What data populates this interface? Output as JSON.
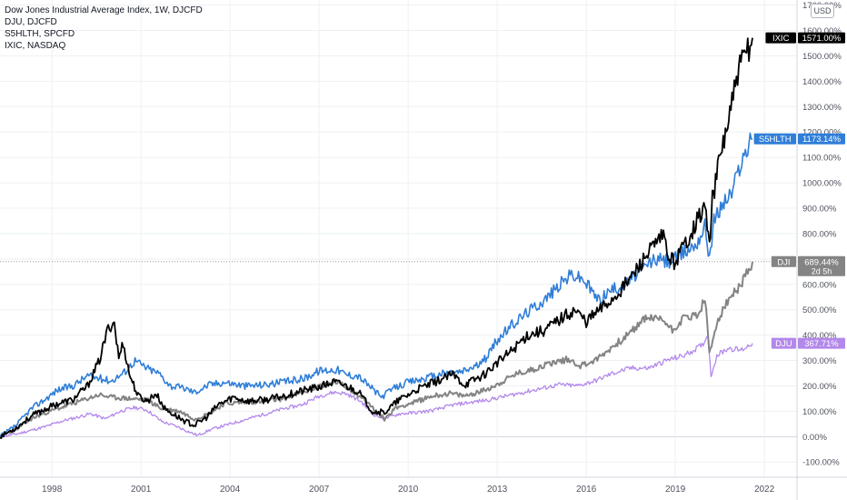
{
  "legend": [
    "Dow Jones Industrial Average Index, 1W, DJCFD",
    "DJU, DJCFD",
    "S5HLTH, SPCFD",
    "IXIC, NASDAQ"
  ],
  "currency": "USD",
  "colors": {
    "background": "#ffffff",
    "grid": "#eef0f3",
    "axis_text": "#50535e",
    "zero_line": "#d1d4dc",
    "DJI": "#848484",
    "DJU": "#b388eb",
    "S5HLTH": "#2f7ed8",
    "IXIC": "#000000"
  },
  "chart_data": {
    "type": "line",
    "title": "Dow Jones Industrial Average Index, 1W, DJCFD",
    "xlabel": "",
    "ylabel": "",
    "x_ticks": [
      "1998",
      "2001",
      "2004",
      "2007",
      "2010",
      "2013",
      "2016",
      "2019",
      "2022"
    ],
    "y_ticks": [
      "-100.00%",
      "0.00%",
      "100.00%",
      "200.00%",
      "300.00%",
      "400.00%",
      "500.00%",
      "600.00%",
      "700.00%",
      "800.00%",
      "900.00%",
      "1000.00%",
      "1100.00%",
      "1200.00%",
      "1300.00%",
      "1400.00%",
      "1500.00%",
      "1600.00%",
      "1700.00%"
    ],
    "xlim": [
      1996.25,
      2023.1
    ],
    "ylim": [
      -160,
      1720
    ],
    "grid": true,
    "legend_position": "top-left",
    "series": [
      {
        "name": "IXIC",
        "label": "IXIC",
        "value_label": "1571.00%",
        "value": 1571,
        "x": [
          1996.25,
          1996.8,
          1997.3,
          1997.8,
          1998.2,
          1998.7,
          1999.2,
          1999.6,
          1999.9,
          2000.1,
          2000.25,
          2000.4,
          2000.6,
          2000.9,
          2001.2,
          2001.5,
          2001.8,
          2002.2,
          2002.5,
          2002.8,
          2003.2,
          2003.6,
          2004.1,
          2004.6,
          2005.2,
          2005.8,
          2006.4,
          2007.0,
          2007.5,
          2007.8,
          2008.3,
          2008.8,
          2009.2,
          2009.7,
          2010.3,
          2010.9,
          2011.5,
          2011.9,
          2012.5,
          2013.0,
          2013.5,
          2014.0,
          2014.6,
          2015.2,
          2015.6,
          2016.0,
          2016.4,
          2016.9,
          2017.5,
          2018.0,
          2018.6,
          2018.8,
          2019.0,
          2019.5,
          2020.0,
          2020.15,
          2020.25,
          2020.5,
          2020.8,
          2021.1,
          2021.4,
          2021.6
        ],
        "values": [
          0,
          35,
          80,
          110,
          130,
          145,
          200,
          300,
          430,
          450,
          310,
          370,
          250,
          160,
          140,
          170,
          110,
          80,
          60,
          45,
          75,
          125,
          155,
          140,
          145,
          160,
          180,
          195,
          215,
          205,
          180,
          100,
          95,
          145,
          185,
          215,
          245,
          205,
          240,
          290,
          340,
          400,
          420,
          470,
          500,
          455,
          495,
          545,
          625,
          710,
          790,
          700,
          690,
          800,
          910,
          750,
          930,
          1100,
          1250,
          1420,
          1520,
          1571
        ]
      },
      {
        "name": "S5HLTH",
        "label": "S5HLTH",
        "value_label": "1173.14%",
        "value": 1173.14,
        "x": [
          1996.25,
          1996.8,
          1997.3,
          1997.8,
          1998.2,
          1998.7,
          1999.2,
          1999.6,
          2000.0,
          2000.4,
          2000.8,
          2001.2,
          2001.6,
          2002.0,
          2002.5,
          2002.8,
          2003.3,
          2003.8,
          2004.5,
          2005.2,
          2005.8,
          2006.5,
          2007.0,
          2007.6,
          2007.9,
          2008.3,
          2008.7,
          2009.1,
          2009.5,
          2010.0,
          2010.6,
          2011.2,
          2011.8,
          2012.5,
          2013.0,
          2013.5,
          2014.0,
          2014.6,
          2015.2,
          2015.5,
          2015.9,
          2016.4,
          2016.8,
          2017.3,
          2017.8,
          2018.3,
          2018.8,
          2019.2,
          2019.7,
          2020.0,
          2020.15,
          2020.3,
          2020.6,
          2020.9,
          2021.2,
          2021.6
        ],
        "values": [
          0,
          45,
          110,
          150,
          185,
          200,
          240,
          230,
          220,
          250,
          300,
          270,
          250,
          200,
          190,
          175,
          205,
          215,
          200,
          205,
          215,
          230,
          260,
          265,
          245,
          240,
          200,
          155,
          190,
          215,
          230,
          250,
          255,
          290,
          380,
          440,
          490,
          540,
          610,
          640,
          620,
          540,
          575,
          600,
          650,
          700,
          690,
          720,
          760,
          830,
          710,
          850,
          920,
          960,
          1080,
          1173
        ]
      },
      {
        "name": "DJI",
        "label": "DJI",
        "value_label": "689.44%",
        "value": 689.44,
        "sub_label": "2d 5h",
        "x": [
          1996.25,
          1996.8,
          1997.3,
          1997.8,
          1998.2,
          1998.7,
          1999.2,
          1999.6,
          2000.0,
          2000.6,
          2001.2,
          2001.7,
          2002.3,
          2002.8,
          2003.3,
          2003.8,
          2004.5,
          2005.2,
          2005.8,
          2006.5,
          2007.0,
          2007.6,
          2008.0,
          2008.5,
          2009.0,
          2009.2,
          2009.6,
          2010.2,
          2010.8,
          2011.4,
          2011.9,
          2012.5,
          2013.0,
          2013.6,
          2014.2,
          2014.8,
          2015.4,
          2015.8,
          2016.3,
          2016.9,
          2017.5,
          2018.0,
          2018.6,
          2018.9,
          2019.3,
          2019.8,
          2020.0,
          2020.15,
          2020.4,
          2020.8,
          2021.1,
          2021.4,
          2021.6
        ],
        "values": [
          0,
          30,
          70,
          95,
          110,
          130,
          150,
          165,
          155,
          150,
          145,
          110,
          100,
          70,
          90,
          130,
          135,
          140,
          150,
          175,
          200,
          215,
          190,
          150,
          90,
          70,
          115,
          135,
          160,
          170,
          160,
          180,
          205,
          245,
          265,
          290,
          305,
          280,
          300,
          355,
          410,
          470,
          460,
          420,
          470,
          480,
          550,
          320,
          450,
          540,
          580,
          640,
          689
        ]
      },
      {
        "name": "DJU",
        "label": "DJU",
        "value_label": "367.71%",
        "value": 367.71,
        "x": [
          1996.25,
          1996.8,
          1997.3,
          1997.8,
          1998.3,
          1998.8,
          1999.3,
          1999.8,
          2000.3,
          2000.8,
          2001.2,
          2001.7,
          2002.2,
          2002.6,
          2002.9,
          2003.4,
          2004.0,
          2004.6,
          2005.2,
          2005.8,
          2006.4,
          2007.0,
          2007.5,
          2007.9,
          2008.4,
          2008.8,
          2009.2,
          2009.7,
          2010.3,
          2010.9,
          2011.5,
          2012.1,
          2012.7,
          2013.3,
          2013.9,
          2014.5,
          2015.1,
          2015.7,
          2016.3,
          2016.9,
          2017.5,
          2018.1,
          2018.7,
          2019.3,
          2019.9,
          2020.1,
          2020.2,
          2020.4,
          2020.8,
          2021.2,
          2021.6
        ],
        "values": [
          0,
          10,
          25,
          40,
          60,
          75,
          90,
          70,
          100,
          115,
          105,
          60,
          40,
          20,
          5,
          30,
          50,
          70,
          90,
          110,
          125,
          160,
          175,
          170,
          140,
          90,
          70,
          90,
          95,
          105,
          125,
          135,
          145,
          160,
          175,
          190,
          205,
          200,
          220,
          250,
          270,
          270,
          300,
          320,
          360,
          400,
          240,
          320,
          350,
          340,
          368
        ]
      }
    ]
  }
}
